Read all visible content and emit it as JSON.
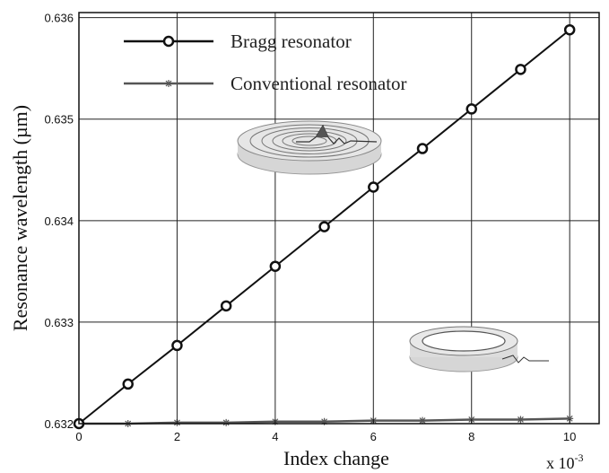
{
  "chart_data": {
    "type": "line",
    "title": "",
    "xlabel": "Index change",
    "ylabel": "Resonance wavelength (µm)",
    "x_multiplier": "x 10",
    "x_multiplier_exp": "-3",
    "xlim": [
      0,
      10.6
    ],
    "ylim": [
      0.632,
      0.63605
    ],
    "xticks": [
      0,
      2,
      4,
      6,
      8,
      10
    ],
    "yticks": [
      0.632,
      0.633,
      0.634,
      0.635,
      0.636
    ],
    "xtick_labels": [
      "0",
      "2",
      "4",
      "6",
      "8",
      "10"
    ],
    "ytick_labels": [
      "0.632",
      "0.633",
      "0.634",
      "0.635",
      "0.636"
    ],
    "grid": true,
    "legend_position": "top-left",
    "x": [
      0,
      1,
      2,
      3,
      4,
      5,
      6,
      7,
      8,
      9,
      10
    ],
    "series": [
      {
        "name": "Bragg resonator",
        "marker": "circle",
        "color": "#111111",
        "values": [
          0.632,
          0.63239,
          0.63277,
          0.63316,
          0.63355,
          0.63394,
          0.63433,
          0.63471,
          0.6351,
          0.63549,
          0.63588
        ]
      },
      {
        "name": "Conventional resonator",
        "marker": "star",
        "color": "#555555",
        "values": [
          0.632,
          0.632,
          0.63201,
          0.63201,
          0.63202,
          0.63202,
          0.63203,
          0.63203,
          0.63204,
          0.63204,
          0.63205
        ]
      }
    ]
  }
}
